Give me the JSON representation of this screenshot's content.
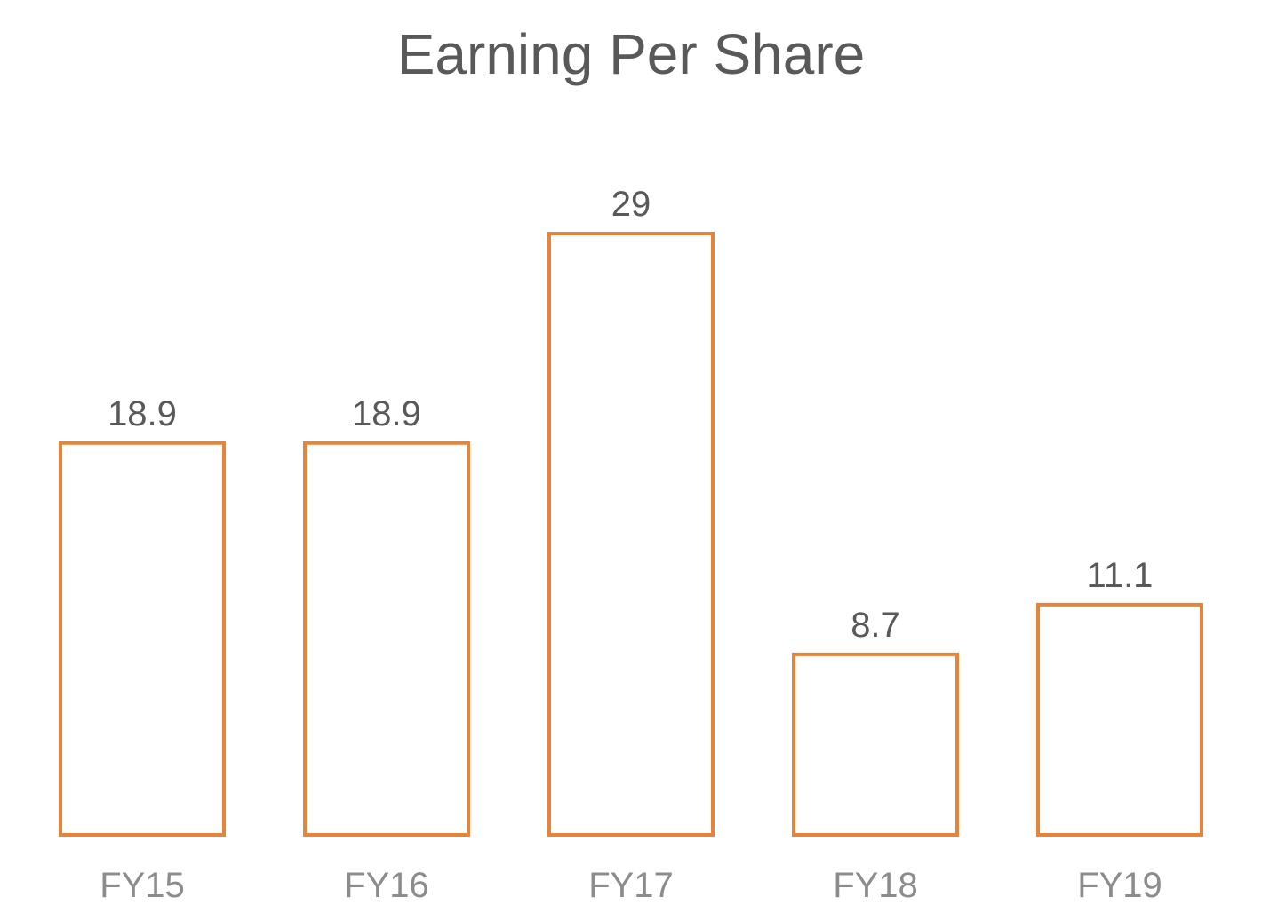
{
  "chart_data": {
    "type": "bar",
    "title": "Earning Per Share",
    "categories": [
      "FY15",
      "FY16",
      "FY17",
      "FY18",
      "FY19"
    ],
    "values": [
      18.9,
      18.9,
      29,
      8.7,
      11.1
    ],
    "value_labels": [
      "18.9",
      "18.9",
      "29",
      "8.7",
      "11.1"
    ],
    "xlabel": "",
    "ylabel": "",
    "ylim": [
      0,
      29
    ],
    "grid": false,
    "legend": "none",
    "bar_style": "outline",
    "bar_color": "#E8833A"
  }
}
